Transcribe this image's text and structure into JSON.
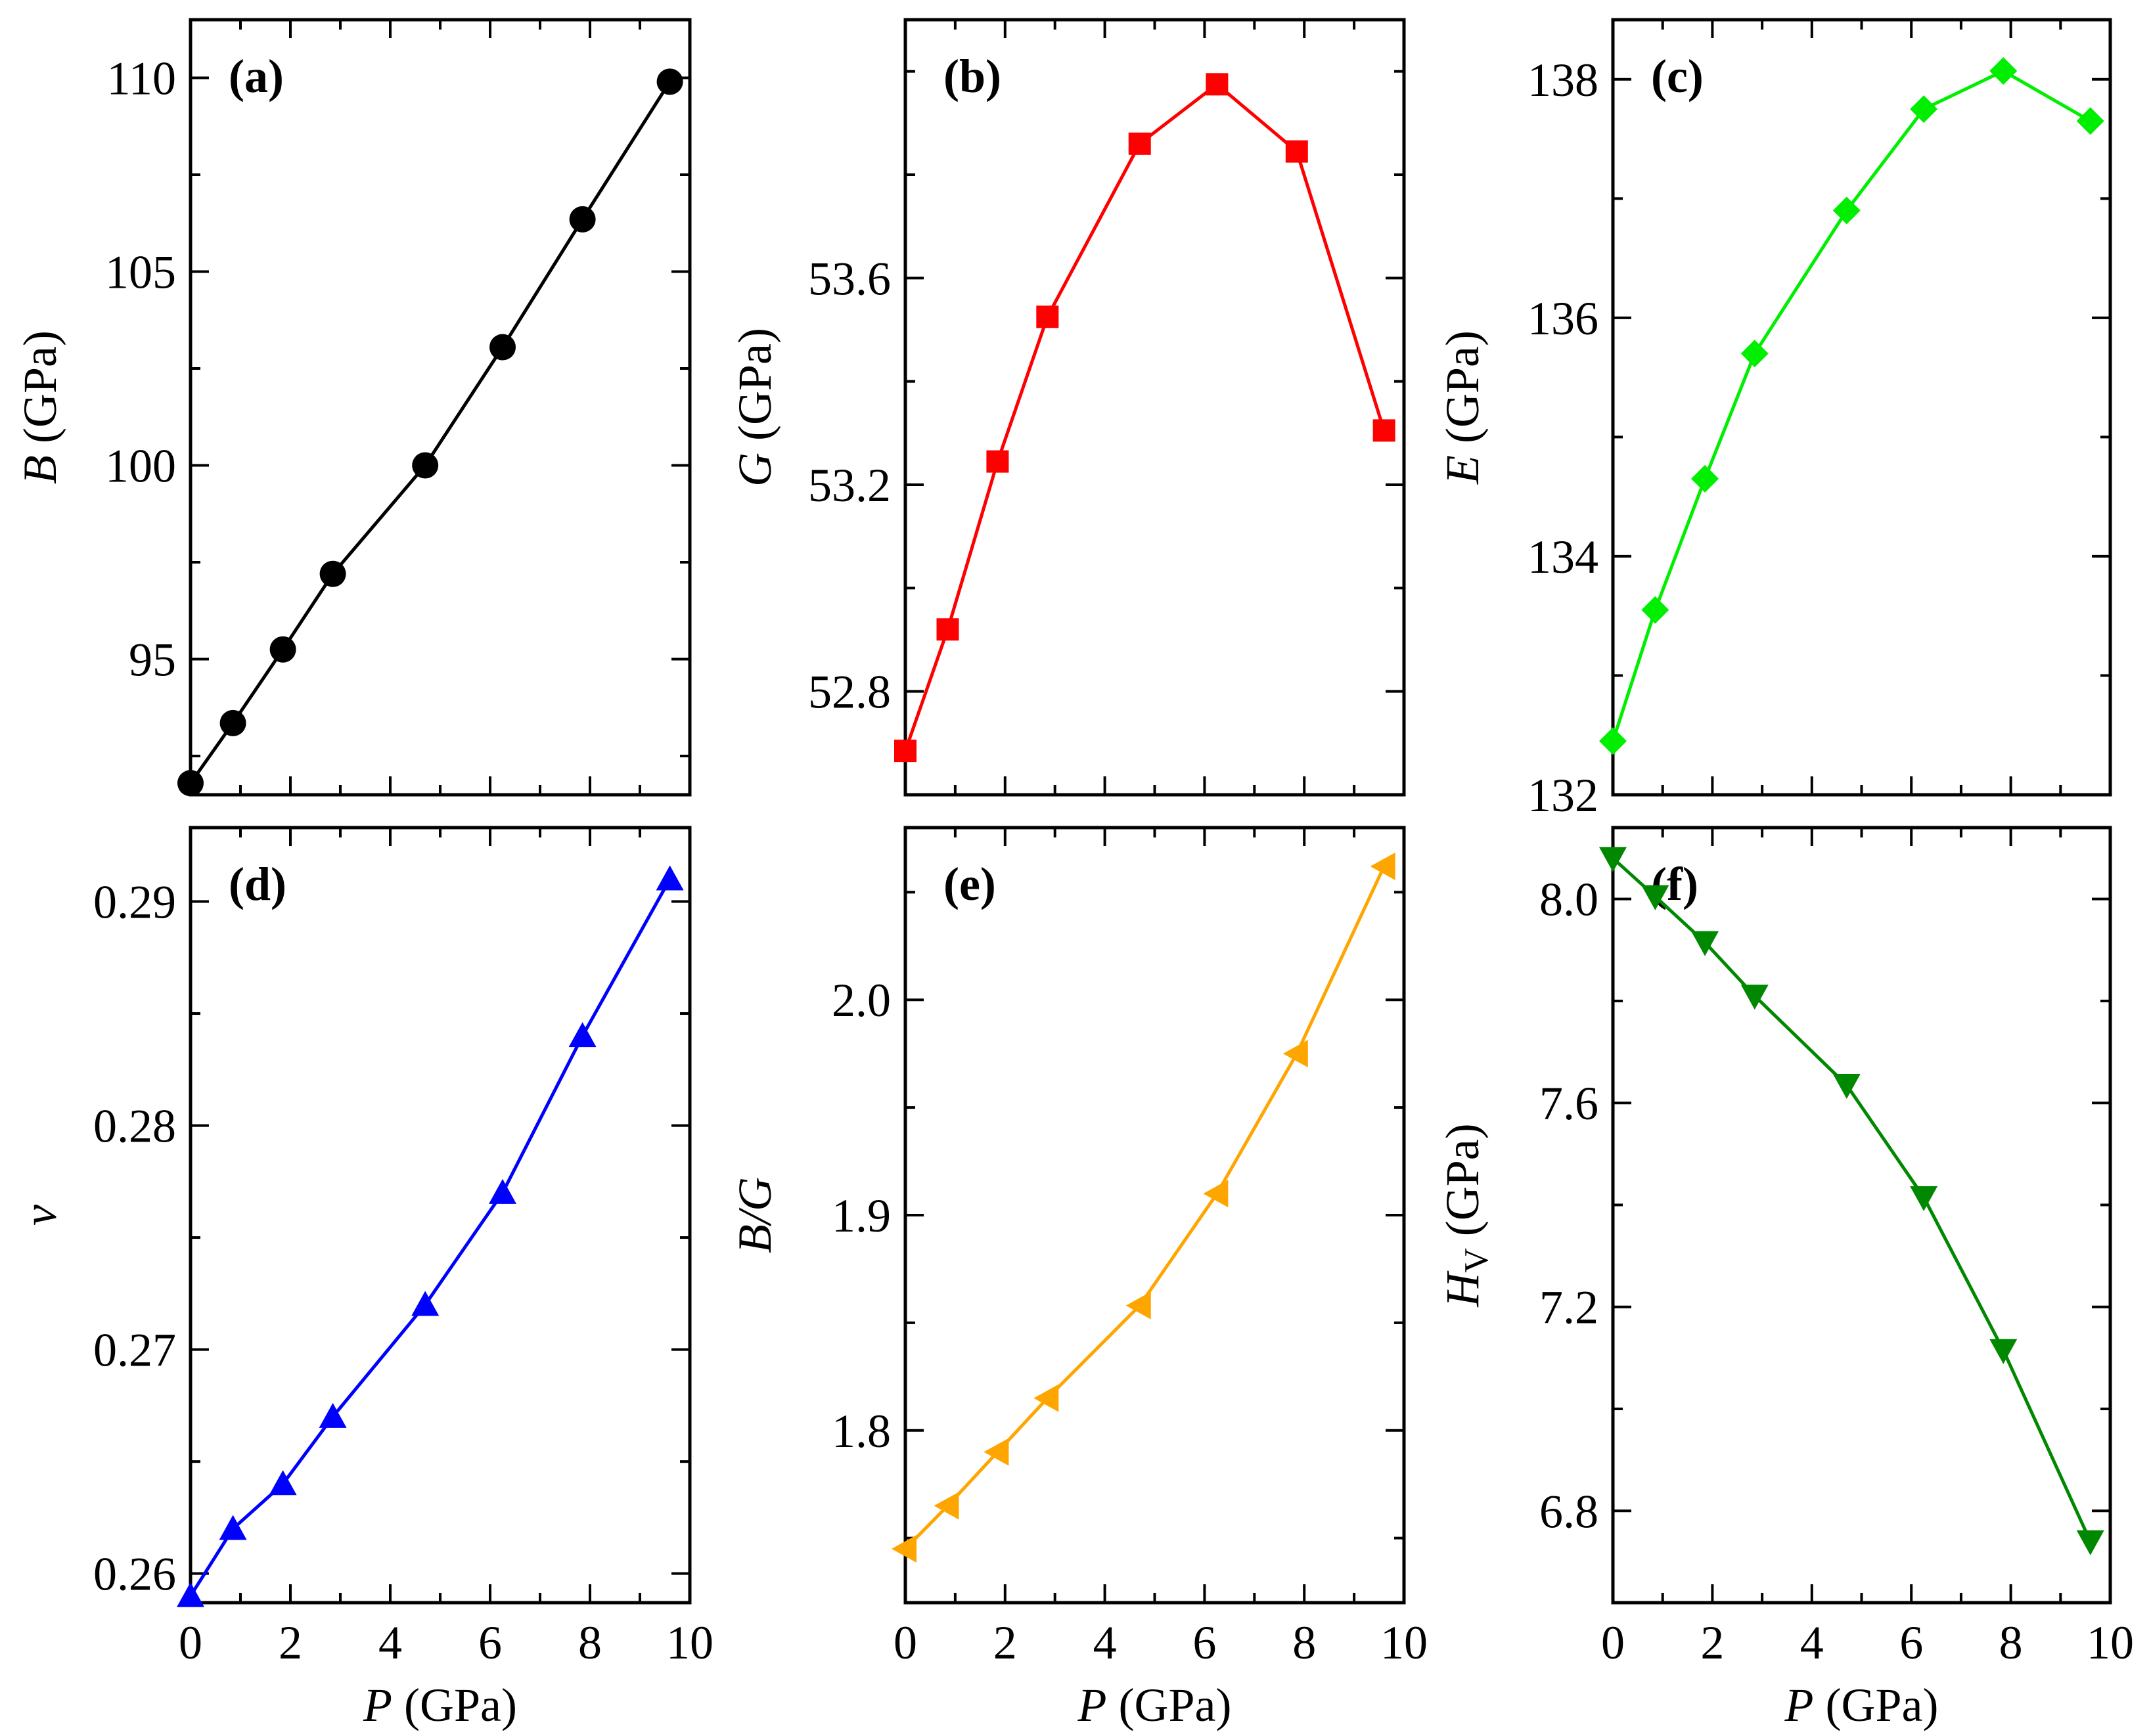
{
  "figure": {
    "x_axis": {
      "variable": "P",
      "unit": "(GPa)",
      "ticks": [
        "0",
        "2",
        "4",
        "6",
        "8",
        "10"
      ]
    }
  },
  "chart_data": [
    {
      "id": "a",
      "tag": "(a)",
      "type": "line",
      "color": "#000000",
      "marker": "circle",
      "ylabel": {
        "variable": "B",
        "unit": "(GPa)"
      },
      "xlim": [
        0,
        10
      ],
      "ylim": [
        91.5,
        111.5
      ],
      "yticks": [
        95,
        100,
        105,
        110
      ],
      "ytick_labels": [
        "95",
        "100",
        "105",
        "110"
      ],
      "x": [
        0,
        0.85,
        1.85,
        2.85,
        4.7,
        6.25,
        7.85,
        9.6
      ],
      "values": [
        91.8,
        93.35,
        95.25,
        97.2,
        100.0,
        103.05,
        106.35,
        109.9
      ]
    },
    {
      "id": "b",
      "tag": "(b)",
      "type": "line",
      "color": "#ff0000",
      "marker": "square",
      "ylabel": {
        "variable": "G",
        "unit": "(GPa)"
      },
      "xlim": [
        0,
        10
      ],
      "ylim": [
        52.6,
        54.1
      ],
      "yticks": [
        52.8,
        53.2,
        53.6
      ],
      "ytick_labels": [
        "52.8",
        "53.2",
        "53.6"
      ],
      "x": [
        0,
        0.85,
        1.85,
        2.85,
        4.7,
        6.25,
        7.85,
        9.6
      ],
      "values": [
        52.685,
        52.92,
        53.245,
        53.525,
        53.86,
        53.975,
        53.845,
        53.305
      ]
    },
    {
      "id": "c",
      "tag": "(c)",
      "type": "line",
      "color": "#00ee00",
      "marker": "diamond",
      "ylabel": {
        "variable": "E",
        "unit": "(GPa)"
      },
      "xlim": [
        0,
        10
      ],
      "ylim": [
        132,
        138.5
      ],
      "yticks": [
        132,
        134,
        136,
        138
      ],
      "ytick_labels": [
        "132",
        "134",
        "136",
        "138"
      ],
      "x": [
        0,
        0.85,
        1.85,
        2.85,
        4.7,
        6.25,
        7.85,
        9.6
      ],
      "values": [
        132.45,
        133.55,
        134.65,
        135.7,
        136.9,
        137.75,
        138.07,
        137.65
      ]
    },
    {
      "id": "d",
      "tag": "(d)",
      "type": "line",
      "color": "#0000ff",
      "marker": "triangle-up",
      "ylabel": {
        "variable": "ν",
        "unit": ""
      },
      "xlim": [
        0,
        10
      ],
      "ylim": [
        0.2587,
        0.2933
      ],
      "yticks": [
        0.26,
        0.27,
        0.28,
        0.29
      ],
      "ytick_labels": [
        "0.26",
        "0.27",
        "0.28",
        "0.29"
      ],
      "x": [
        0,
        0.85,
        1.85,
        2.85,
        4.7,
        6.25,
        7.85,
        9.6
      ],
      "values": [
        0.259,
        0.262,
        0.264,
        0.267,
        0.272,
        0.277,
        0.284,
        0.291
      ]
    },
    {
      "id": "e",
      "tag": "(e)",
      "type": "line",
      "color": "#ffa500",
      "marker": "triangle-left",
      "ylabel": {
        "variable": "B/G",
        "unit": ""
      },
      "xlim": [
        0,
        10
      ],
      "ylim": [
        1.72,
        2.08
      ],
      "yticks": [
        1.8,
        1.9,
        2.0
      ],
      "ytick_labels": [
        "1.8",
        "1.9",
        "2.0"
      ],
      "x": [
        0,
        0.85,
        1.85,
        2.85,
        4.7,
        6.25,
        7.85,
        9.6
      ],
      "values": [
        1.745,
        1.765,
        1.79,
        1.815,
        1.858,
        1.91,
        1.975,
        2.062
      ]
    },
    {
      "id": "f",
      "tag": "(f)",
      "type": "line",
      "color": "#008800",
      "marker": "triangle-down",
      "ylabel": {
        "variable": "H",
        "subscript": "V",
        "unit": "(GPa)"
      },
      "xlim": [
        0,
        10
      ],
      "ylim": [
        6.62,
        8.14
      ],
      "yticks": [
        6.8,
        7.2,
        7.6,
        8.0
      ],
      "ytick_labels": [
        "6.8",
        "7.2",
        "7.6",
        "8.0"
      ],
      "x": [
        0,
        0.85,
        1.85,
        2.85,
        4.7,
        6.25,
        7.85,
        9.6
      ],
      "values": [
        8.08,
        8.005,
        7.915,
        7.81,
        7.635,
        7.415,
        7.115,
        6.74
      ]
    }
  ]
}
